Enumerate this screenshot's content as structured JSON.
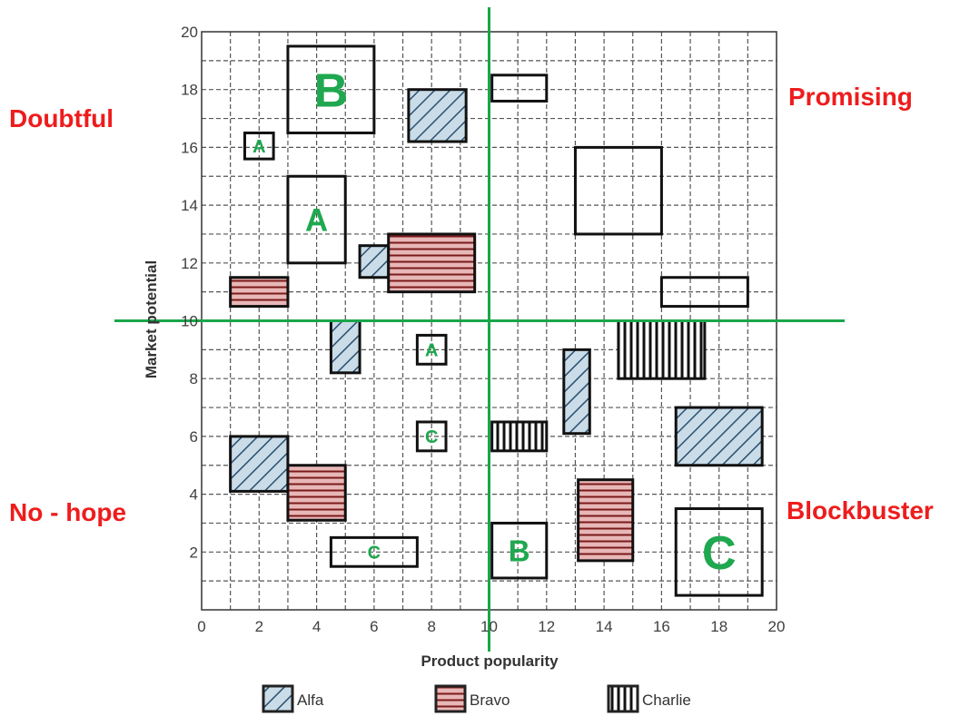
{
  "colors": {
    "grid": "#555555",
    "frame": "#333333",
    "divider": "#1aa64a",
    "quadrant_text": "#ee1c1c",
    "box_label": "#1fa84f",
    "alfa_fill": "#c9dce8",
    "alfa_hatch": "#2c4f6e",
    "bravo_fill": "#e8b7b7",
    "bravo_hatch": "#7a1a1a",
    "charlie_fill": "#ffffff",
    "charlie_hatch": "#111111"
  },
  "chart_data": {
    "type": "scatter",
    "xlabel": "Product popularity",
    "ylabel": "Market potential",
    "xlim": [
      0,
      20
    ],
    "ylim": [
      0,
      20
    ],
    "x_ticks": [
      "0",
      "2",
      "4",
      "6",
      "8",
      "10",
      "12",
      "14",
      "16",
      "18",
      "20"
    ],
    "y_ticks": [
      "2",
      "4",
      "6",
      "8",
      "10",
      "12",
      "14",
      "16",
      "18",
      "20"
    ],
    "grid": true,
    "dividers": {
      "x": 10,
      "y": 10
    },
    "quadrants": [
      {
        "label": "Doubtful",
        "position": "top-left"
      },
      {
        "label": "Promising",
        "position": "top-right"
      },
      {
        "label": "No - hope",
        "position": "bottom-left"
      },
      {
        "label": "Blockbuster",
        "position": "bottom-right"
      }
    ],
    "legend": {
      "placement": "bottom",
      "entries": [
        {
          "name": "Alfa",
          "pattern": "diagonal"
        },
        {
          "name": "Bravo",
          "pattern": "horizontal"
        },
        {
          "name": "Charlie",
          "pattern": "vertical"
        }
      ]
    },
    "boxes": [
      {
        "series": "Alfa",
        "x0": 7.2,
        "x1": 9.2,
        "y0": 16.2,
        "y1": 18.0
      },
      {
        "series": "Alfa",
        "x0": 5.5,
        "x1": 6.5,
        "y0": 11.5,
        "y1": 12.6
      },
      {
        "series": "Alfa",
        "x0": 4.5,
        "x1": 5.5,
        "y0": 8.2,
        "y1": 10.0
      },
      {
        "series": "Alfa",
        "x0": 1.0,
        "x1": 3.0,
        "y0": 4.1,
        "y1": 6.0
      },
      {
        "series": "Alfa",
        "x0": 12.6,
        "x1": 13.5,
        "y0": 6.1,
        "y1": 9.0
      },
      {
        "series": "Alfa",
        "x0": 16.5,
        "x1": 19.5,
        "y0": 5.0,
        "y1": 7.0
      },
      {
        "series": "Bravo",
        "x0": 1.0,
        "x1": 3.0,
        "y0": 10.5,
        "y1": 11.5
      },
      {
        "series": "Bravo",
        "x0": 6.5,
        "x1": 9.5,
        "y0": 11.0,
        "y1": 13.0
      },
      {
        "series": "Bravo",
        "x0": 3.0,
        "x1": 5.0,
        "y0": 3.1,
        "y1": 5.0
      },
      {
        "series": "Bravo",
        "x0": 13.1,
        "x1": 15.0,
        "y0": 1.7,
        "y1": 4.5
      },
      {
        "series": "Charlie",
        "x0": 10.1,
        "x1": 12.0,
        "y0": 5.5,
        "y1": 6.5
      },
      {
        "series": "Charlie",
        "x0": 14.5,
        "x1": 17.5,
        "y0": 8.0,
        "y1": 10.0
      },
      {
        "series": "",
        "text": "B",
        "x0": 3.0,
        "x1": 6.0,
        "y0": 16.5,
        "y1": 19.5
      },
      {
        "series": "",
        "text": "A",
        "x0": 1.5,
        "x1": 2.5,
        "y0": 15.6,
        "y1": 16.5
      },
      {
        "series": "",
        "text": "A",
        "x0": 3.0,
        "x1": 5.0,
        "y0": 12.0,
        "y1": 15.0
      },
      {
        "series": "",
        "x0": 10.1,
        "x1": 12.0,
        "y0": 17.6,
        "y1": 18.5
      },
      {
        "series": "",
        "x0": 13.0,
        "x1": 16.0,
        "y0": 13.0,
        "y1": 16.0
      },
      {
        "series": "",
        "x0": 16.0,
        "x1": 19.0,
        "y0": 10.5,
        "y1": 11.5
      },
      {
        "series": "",
        "text": "A",
        "x0": 7.5,
        "x1": 8.5,
        "y0": 8.5,
        "y1": 9.5
      },
      {
        "series": "",
        "text": "C",
        "x0": 7.5,
        "x1": 8.5,
        "y0": 5.5,
        "y1": 6.5
      },
      {
        "series": "",
        "text": "C",
        "x0": 4.5,
        "x1": 7.5,
        "y0": 1.5,
        "y1": 2.5
      },
      {
        "series": "",
        "text": "B",
        "x0": 10.1,
        "x1": 12.0,
        "y0": 1.1,
        "y1": 3.0
      },
      {
        "series": "",
        "text": "C",
        "x0": 16.5,
        "x1": 19.5,
        "y0": 0.5,
        "y1": 3.5
      }
    ]
  }
}
